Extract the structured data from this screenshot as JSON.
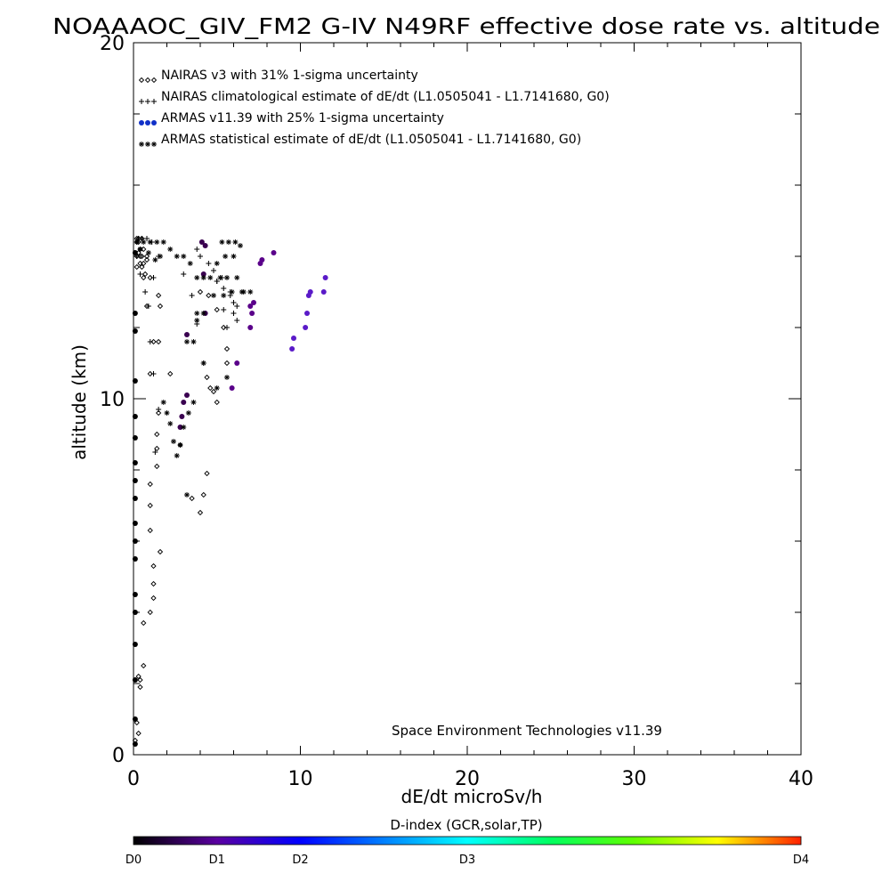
{
  "chart_data": {
    "type": "scatter",
    "title": "NOAAAOC_GIV_FM2 G-IV   N49RF  effective dose rate vs. altitude",
    "xlabel": "dE/dt microSv/h",
    "ylabel": "altitude (km)",
    "xlim": [
      0,
      40
    ],
    "ylim": [
      0,
      20
    ],
    "x_ticks": [
      "0",
      "10",
      "20",
      "30",
      "40"
    ],
    "y_ticks": [
      "0",
      "10",
      "20"
    ],
    "grid": false,
    "legend_position": "top-left",
    "annotation": "Space Environment Technologies v11.39",
    "legend": [
      {
        "marker": "diamond",
        "label": "NAIRAS v3 with 31% 1-sigma uncertainty"
      },
      {
        "marker": "plus",
        "label": "NAIRAS climatological estimate of dE/dt (L1.0505041 - L1.7141680, G0)"
      },
      {
        "marker": "dot",
        "label": "ARMAS v11.39 with 25% 1-sigma uncertainty"
      },
      {
        "marker": "asterisk",
        "label": "ARMAS statistical estimate of dE/dt (L1.0505041 - L1.7141680, G0)"
      }
    ],
    "colorbar": {
      "title": "D-index (GCR,solar,TP)",
      "labels": [
        "D0",
        "D1",
        "D2",
        "D3",
        "D4"
      ],
      "label_positions": [
        0,
        0.125,
        0.25,
        0.5,
        1.0
      ]
    },
    "series": [
      {
        "name": "NAIRAS v3 with 31% 1-sigma uncertainty",
        "marker": "diamond",
        "x": [
          0.1,
          0.3,
          0.2,
          0.4,
          0.3,
          0.4,
          0.6,
          0.6,
          1.0,
          1.2,
          1.6,
          1.2,
          1.2,
          1.0,
          1.0,
          1.0,
          1.4,
          1.4,
          1.4,
          1.5,
          1.0,
          1.5,
          1.6,
          0.8,
          1.0,
          0.6,
          0.6,
          0.4,
          0.2,
          0.2,
          0.5,
          0.8,
          0.5,
          0.3,
          0.2,
          0.2,
          0.3,
          0.3,
          0.4,
          0.5,
          0.4,
          0.6,
          0.8,
          1.5,
          1.2,
          2.2,
          2.8,
          3.5,
          4.0,
          4.5,
          5.0,
          5.4,
          5.6,
          5.6,
          4.4,
          4.6,
          4.8,
          5.0,
          4.4,
          4.2,
          4.0,
          0.7
        ],
        "y": [
          0.4,
          0.6,
          0.9,
          1.9,
          2.2,
          2.1,
          2.5,
          3.7,
          4.0,
          4.4,
          5.7,
          5.3,
          4.8,
          6.3,
          7.0,
          7.6,
          8.1,
          8.6,
          9.0,
          9.6,
          10.7,
          11.6,
          12.6,
          12.6,
          13.4,
          13.4,
          13.8,
          14.2,
          14.0,
          13.7,
          14.5,
          13.9,
          14.0,
          14.1,
          14.4,
          14.5,
          14.5,
          14.4,
          14.0,
          13.7,
          13.8,
          14.2,
          14.0,
          12.9,
          11.6,
          10.7,
          8.7,
          7.2,
          13.0,
          12.9,
          12.5,
          12.0,
          11.4,
          11.0,
          10.6,
          10.3,
          10.2,
          9.9,
          7.9,
          7.3,
          6.8,
          13.5
        ]
      },
      {
        "name": "NAIRAS climatological estimate of dE/dt (L1.0505041 - L1.7141680, G0)",
        "marker": "plus",
        "x": [
          0.3,
          0.5,
          0.8,
          1.1,
          1.5,
          1.2,
          0.9,
          1.0,
          1.2,
          1.5,
          1.3,
          0.7,
          0.4,
          0.2,
          3.0,
          3.5,
          3.8,
          4.2,
          5.4,
          5.6,
          6.2,
          6.0,
          5.8,
          5.3,
          5.0,
          4.5,
          4.0,
          3.8,
          4.8,
          5.0,
          5.4,
          5.8,
          6.0,
          6.2
        ],
        "y": [
          14.5,
          14.5,
          14.5,
          14.4,
          14.0,
          13.4,
          12.6,
          11.6,
          10.7,
          9.7,
          8.5,
          13.0,
          13.5,
          14.0,
          13.5,
          12.9,
          12.1,
          11.0,
          12.5,
          12.0,
          12.2,
          12.4,
          13.0,
          13.4,
          13.3,
          13.8,
          14.0,
          14.2,
          13.6,
          13.3,
          13.1,
          12.9,
          12.7,
          12.6
        ]
      },
      {
        "name": "ARMAS v11.39 with 25% 1-sigma uncertainty",
        "marker": "dot",
        "x": [
          0.1,
          0.1,
          0.1,
          0.1,
          0.1,
          0.1,
          0.1,
          0.1,
          0.1,
          0.1,
          0.1,
          0.1,
          0.1,
          0.1,
          0.1,
          0.1,
          0.1,
          0.1,
          2.8,
          2.9,
          3.0,
          3.2,
          3.2,
          4.2,
          4.3,
          4.1,
          4.3,
          5.9,
          6.2,
          7.0,
          7.1,
          7.2,
          7.0,
          7.6,
          7.7,
          8.4,
          9.5,
          9.6,
          10.3,
          10.4,
          10.5,
          10.6,
          11.4,
          11.5
        ],
        "y": [
          0.3,
          1.0,
          2.1,
          3.1,
          4.0,
          4.5,
          5.5,
          6.0,
          6.5,
          7.2,
          7.7,
          8.2,
          8.9,
          9.5,
          10.5,
          11.9,
          12.4,
          14.1,
          9.2,
          9.5,
          9.9,
          10.1,
          11.8,
          13.5,
          14.3,
          14.4,
          12.4,
          10.3,
          11.0,
          12.0,
          12.4,
          12.7,
          12.6,
          13.8,
          13.9,
          14.1,
          11.4,
          11.7,
          12.0,
          12.4,
          12.9,
          13.0,
          13.0,
          13.4
        ]
      },
      {
        "name": "ARMAS statistical estimate of dE/dt (L1.0505041 - L1.7141680, G0)",
        "marker": "asterisk",
        "x": [
          0.2,
          0.6,
          1.0,
          1.4,
          1.8,
          2.2,
          2.6,
          3.0,
          3.4,
          3.8,
          4.2,
          5.3,
          5.7,
          6.1,
          6.4,
          6.0,
          5.5,
          5.0,
          4.6,
          5.2,
          5.6,
          6.2,
          6.6,
          7.0,
          6.5,
          5.9,
          5.4,
          4.8,
          4.2,
          3.8,
          3.6,
          3.2,
          2.8,
          2.6,
          2.4,
          2.2,
          2.0,
          1.8,
          1.6,
          0.4,
          0.9,
          1.3,
          3.0,
          3.3,
          3.6,
          3.8,
          4.2,
          5.0,
          5.6,
          3.2
        ],
        "y": [
          14.4,
          14.4,
          14.4,
          14.4,
          14.4,
          14.2,
          14.0,
          14.0,
          13.8,
          13.4,
          13.4,
          14.4,
          14.4,
          14.4,
          14.3,
          14.0,
          14.0,
          13.8,
          13.4,
          13.4,
          13.4,
          13.4,
          13.0,
          13.0,
          13.0,
          13.0,
          12.9,
          12.9,
          12.4,
          12.2,
          11.6,
          11.6,
          8.7,
          8.4,
          8.8,
          9.3,
          9.6,
          9.9,
          14.0,
          14.2,
          14.1,
          13.9,
          9.2,
          9.6,
          9.9,
          12.4,
          11.0,
          10.3,
          10.6,
          7.3
        ]
      }
    ]
  }
}
